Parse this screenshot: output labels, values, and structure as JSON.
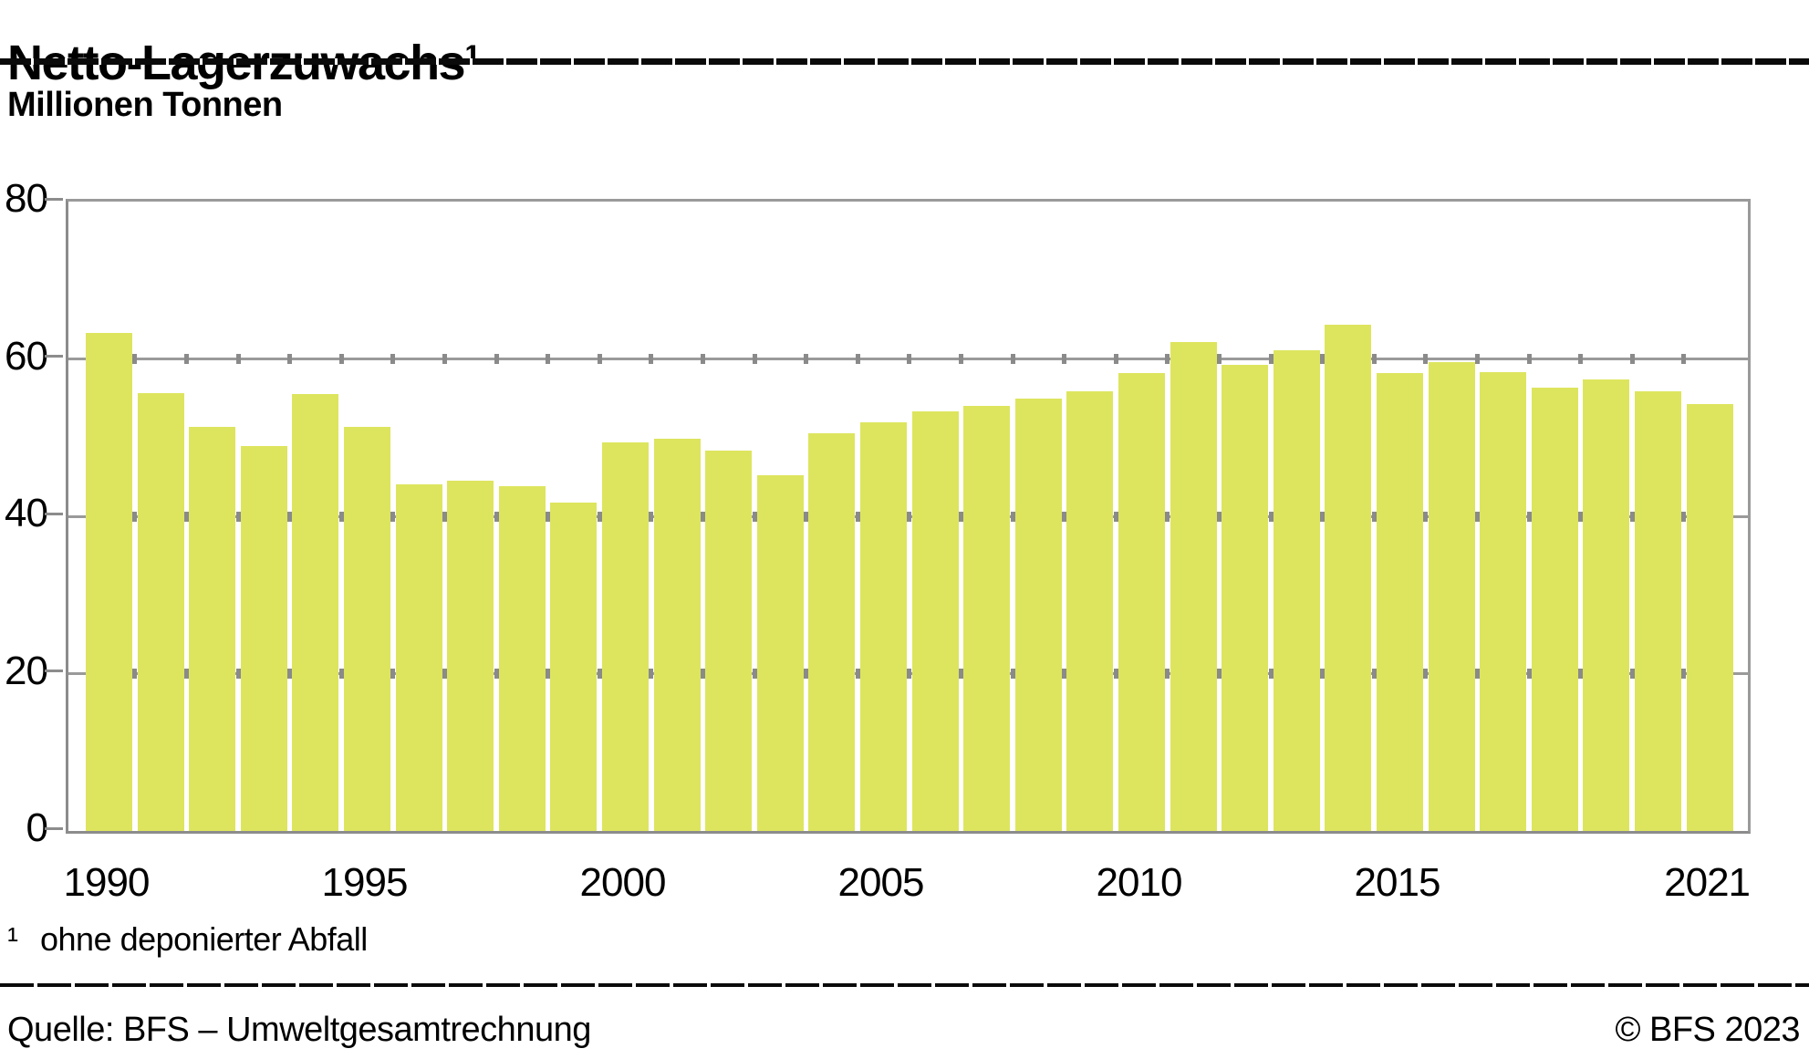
{
  "header": {
    "title": "Netto-Lagerzuwachs¹"
  },
  "subtitle": {
    "text": "Millionen Tonnen"
  },
  "chart_data": {
    "type": "bar",
    "title": "Netto-Lagerzuwachs¹",
    "ylabel": "Millionen Tonnen",
    "xlabel": "",
    "categories": [
      1990,
      1991,
      1992,
      1993,
      1994,
      1995,
      1996,
      1997,
      1998,
      1999,
      2000,
      2001,
      2002,
      2003,
      2004,
      2005,
      2006,
      2007,
      2008,
      2009,
      2010,
      2011,
      2012,
      2013,
      2014,
      2015,
      2016,
      2017,
      2018,
      2019,
      2020,
      2021
    ],
    "values": [
      63.3,
      55.7,
      51.4,
      48.9,
      55.5,
      51.4,
      44.1,
      44.5,
      43.8,
      41.7,
      49.4,
      49.9,
      48.4,
      45.2,
      50.6,
      51.9,
      53.3,
      54.0,
      55.0,
      55.9,
      58.2,
      62.2,
      59.2,
      61.1,
      64.3,
      58.2,
      59.6,
      58.3,
      56.4,
      57.4,
      55.9,
      54.3
    ],
    "ylim": [
      0,
      80
    ],
    "yticks": [
      0,
      20,
      40,
      60,
      80
    ],
    "xtick_labels": [
      "1990",
      "1995",
      "2000",
      "2005",
      "2010",
      "2015",
      "2021"
    ],
    "grid": true,
    "legend": "none",
    "bar_color": "#dde55e",
    "gridline_color": "#9a9a9a",
    "axis_color": "#8c8c8c"
  },
  "footnote": {
    "marker": "¹",
    "text": "ohne deponierter Abfall"
  },
  "footer": {
    "source": "Quelle: BFS – Umweltgesamtrechnung",
    "copyright": "© BFS 2023"
  }
}
